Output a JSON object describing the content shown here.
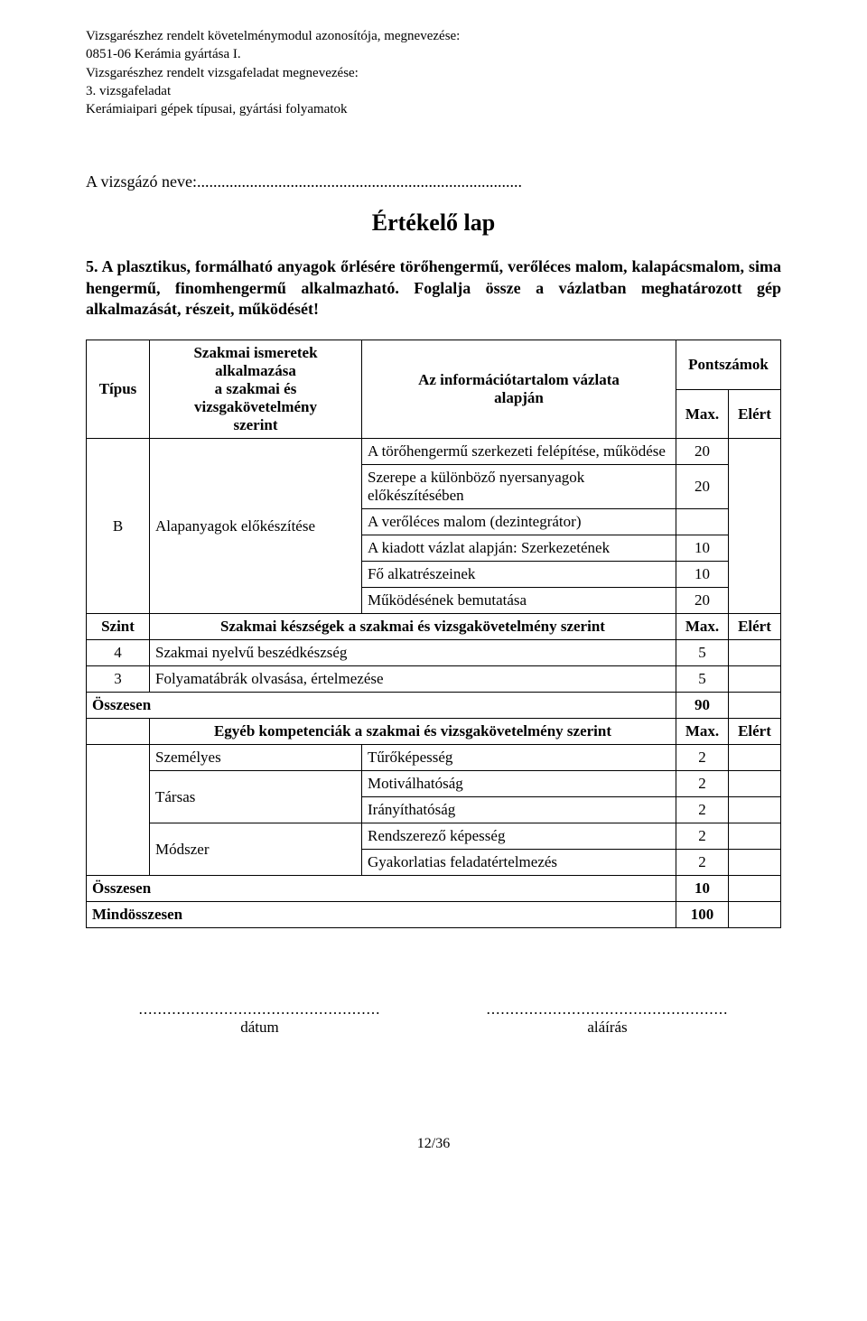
{
  "header": {
    "l1": "Vizsgarészhez rendelt követelménymodul azonosítója, megnevezése:",
    "l2": "0851-06 Kerámia gyártása I.",
    "l3": "Vizsgarészhez rendelt vizsgafeladat megnevezése:",
    "l4": "3. vizsgafeladat",
    "l5": "Kerámiaipari gépek típusai, gyártási folyamatok"
  },
  "examinee_label": "A vizsgázó neve:",
  "title": "Értékelő lap",
  "task": "5.  A plasztikus, formálható anyagok őrlésére törőhengermű, verőléces malom, kalapácsmalom, sima hengermű, finomhengermű alkalmazható. Foglalja össze a vázlatban meghatározott gép alkalmazását, részeit, működését!",
  "cols": {
    "tipus": "Típus",
    "ismeretek_l1": "Szakmai ismeretek alkalmazása",
    "ismeretek_l2": "a szakmai és vizsgakövetelmény",
    "ismeretek_l3": "szerint",
    "info_l1": "Az információtartalom vázlata",
    "info_l2": "alapján",
    "pontszamok": "Pontszámok",
    "max": "Max.",
    "elert": "Elért"
  },
  "row_b_label": "B",
  "row_b_text": "Alapanyagok előkészítése",
  "info_items": {
    "r1": "A törőhengermű szerkezeti felépítése, működése",
    "r2": "Szerepe a különböző nyersanyagok előkészítésében",
    "r3": "A verőléces malom (dezintegrátor)",
    "r4": "A kiadott vázlat alapján: Szerkezetének",
    "r5": "Fő alkatrészeinek",
    "r6": "Működésének bemutatása"
  },
  "info_scores": {
    "r1": "20",
    "r2": "20",
    "r3": "",
    "r4": "10",
    "r5": "10",
    "r6": "20"
  },
  "szint_header": "Szint",
  "keszsegek_header": "Szakmai készségek a szakmai és vizsgakövetelmény szerint",
  "max_label": "Max.",
  "elert_label": "Elért",
  "skill_rows": [
    {
      "szint": "4",
      "text": "Szakmai nyelvű beszédkészség",
      "max": "5"
    },
    {
      "szint": "3",
      "text": "Folyamatábrák olvasása, értelmezése",
      "max": "5"
    }
  ],
  "osszesen": "Összesen",
  "osszesen1_val": "90",
  "egyeb_header": "Egyéb kompetenciák a szakmai és vizsgakövetelmény szerint",
  "comp": {
    "szemelyes": "Személyes",
    "tarsas": "Társas",
    "modszer": "Módszer",
    "c1": "Tűrőképesség",
    "c2": "Motiválhatóság",
    "c3": "Irányíthatóság",
    "c4": "Rendszerező képesség",
    "c5": "Gyakorlatias feladatértelmezés",
    "v1": "2",
    "v2": "2",
    "v3": "2",
    "v4": "2",
    "v5": "2"
  },
  "osszesen2_val": "10",
  "mindosszesen": "Mindösszesen",
  "mindosszesen_val": "100",
  "datum": "dátum",
  "alairas": "aláírás",
  "pagenum": "12/36",
  "dotline": "..................................................."
}
